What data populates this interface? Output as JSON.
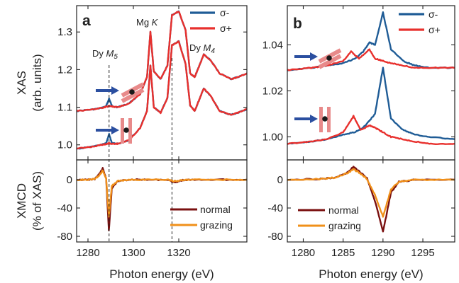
{
  "chart_data": [
    {
      "panel": "a",
      "type": "line",
      "xlabel": "Photon energy (eV)",
      "xlim": [
        1275,
        1350
      ],
      "xticks": [
        1280,
        1300,
        1320
      ],
      "top": {
        "ylabel": [
          "XAS",
          "(arb. units)"
        ],
        "ylim": [
          0.96,
          1.37
        ],
        "yticks": [
          "1.0",
          "1.1",
          "1.2",
          "1.3"
        ],
        "legend": {
          "position": "top-right",
          "entries": [
            {
              "name": "σ-",
              "color": "#1f5c96"
            },
            {
              "name": "σ+",
              "color": "#e8302d"
            }
          ]
        },
        "annotations": [
          "Dy M5",
          "Mg K",
          "Dy M4"
        ],
        "series": [
          {
            "name": "σ- (grazing)",
            "color": "#1f5c96",
            "x": [
              1275,
              1282,
              1286,
              1288,
              1289.3,
              1290.5,
              1293,
              1298,
              1303,
              1306,
              1307.5,
              1309,
              1312,
              1315,
              1317,
              1320,
              1323,
              1325,
              1327,
              1329,
              1331,
              1334,
              1338,
              1343,
              1346,
              1350
            ],
            "y": [
              1.09,
              1.094,
              1.098,
              1.103,
              1.123,
              1.104,
              1.1,
              1.11,
              1.135,
              1.18,
              1.3,
              1.195,
              1.175,
              1.21,
              1.345,
              1.355,
              1.305,
              1.19,
              1.18,
              1.21,
              1.24,
              1.225,
              1.19,
              1.175,
              1.18,
              1.19
            ]
          },
          {
            "name": "σ+ (grazing)",
            "color": "#e8302d",
            "x": [
              1275,
              1282,
              1286,
              1288,
              1289.3,
              1290.5,
              1293,
              1298,
              1303,
              1306,
              1307.5,
              1309,
              1312,
              1315,
              1317,
              1320,
              1323,
              1325,
              1327,
              1329,
              1331,
              1334,
              1338,
              1343,
              1346,
              1350
            ],
            "y": [
              1.09,
              1.094,
              1.098,
              1.101,
              1.103,
              1.102,
              1.1,
              1.11,
              1.135,
              1.18,
              1.3,
              1.195,
              1.175,
              1.21,
              1.345,
              1.355,
              1.305,
              1.19,
              1.18,
              1.21,
              1.24,
              1.225,
              1.19,
              1.175,
              1.18,
              1.19
            ]
          },
          {
            "name": "σ- (normal)",
            "color": "#1f5c96",
            "x": [
              1275,
              1282,
              1286,
              1288,
              1289.3,
              1290.5,
              1293,
              1298,
              1303,
              1306,
              1307.5,
              1309,
              1312,
              1315,
              1317,
              1320,
              1323,
              1325,
              1327,
              1329,
              1331,
              1334,
              1338,
              1343,
              1346,
              1350
            ],
            "y": [
              0.99,
              0.995,
              1.0,
              1.004,
              1.028,
              1.006,
              1.003,
              1.012,
              1.045,
              1.09,
              1.21,
              1.1,
              1.085,
              1.125,
              1.265,
              1.275,
              1.215,
              1.105,
              1.09,
              1.12,
              1.15,
              1.13,
              1.09,
              1.08,
              1.085,
              1.095
            ]
          },
          {
            "name": "σ+ (normal)",
            "color": "#e8302d",
            "x": [
              1275,
              1282,
              1286,
              1288,
              1289.3,
              1290.5,
              1293,
              1298,
              1303,
              1306,
              1307.5,
              1309,
              1312,
              1315,
              1317,
              1320,
              1323,
              1325,
              1327,
              1329,
              1331,
              1334,
              1338,
              1343,
              1346,
              1350
            ],
            "y": [
              0.99,
              0.995,
              1.0,
              1.002,
              1.004,
              1.003,
              1.003,
              1.012,
              1.045,
              1.09,
              1.21,
              1.1,
              1.085,
              1.125,
              1.265,
              1.275,
              1.215,
              1.105,
              1.09,
              1.12,
              1.15,
              1.13,
              1.09,
              1.08,
              1.085,
              1.095
            ]
          }
        ]
      },
      "bottom": {
        "ylabel": [
          "XMCD",
          "(% of XAS)"
        ],
        "ylim": [
          -88,
          28
        ],
        "yticks": [
          "0",
          "-40",
          "-80"
        ],
        "legend": {
          "position": "bottom-right",
          "entries": [
            {
              "name": "normal",
              "color": "#7a1010"
            },
            {
              "name": "grazing",
              "color": "#f0901a"
            }
          ]
        },
        "series": [
          {
            "name": "normal",
            "color": "#7a1010",
            "x": [
              1275,
              1280,
              1283,
              1285,
              1286.5,
              1288,
              1289.2,
              1290.5,
              1293,
              1298,
              1305,
              1315,
              1318,
              1321,
              1325,
              1335,
              1350
            ],
            "y": [
              0,
              0,
              1,
              8,
              16,
              2,
              -72,
              -12,
              -2,
              0,
              0,
              0,
              -4,
              -1,
              0,
              0,
              0
            ]
          },
          {
            "name": "grazing",
            "color": "#f0901a",
            "x": [
              1275,
              1280,
              1283,
              1285,
              1286.5,
              1288,
              1289.2,
              1290.5,
              1293,
              1298,
              1305,
              1315,
              1318,
              1321,
              1325,
              1335,
              1350
            ],
            "y": [
              0,
              0,
              1,
              6,
              13,
              2,
              -52,
              -9,
              -2,
              0,
              0,
              0,
              -2,
              -1,
              0,
              0,
              0
            ]
          }
        ]
      }
    },
    {
      "panel": "b",
      "type": "line",
      "xlabel": "Photon energy (eV)",
      "xlim": [
        1278,
        1299
      ],
      "xticks": [
        1280,
        1285,
        1290,
        1295
      ],
      "top": {
        "ylim": [
          0.99,
          1.057
        ],
        "yticks": [
          "1.00",
          "1.02",
          "1.04"
        ],
        "legend": {
          "position": "top-right",
          "entries": [
            {
              "name": "σ-",
              "color": "#1f5c96"
            },
            {
              "name": "σ+",
              "color": "#e8302d"
            }
          ]
        },
        "series": [
          {
            "name": "σ- (grazing)",
            "color": "#1f5c96",
            "x": [
              1278,
              1281,
              1283,
              1285,
              1286.5,
              1287.5,
              1288.3,
              1289,
              1290,
              1291,
              1292.5,
              1294,
              1296,
              1299
            ],
            "y": [
              1.029,
              1.03,
              1.031,
              1.032,
              1.034,
              1.037,
              1.041,
              1.04,
              1.054,
              1.038,
              1.033,
              1.031,
              1.03,
              1.03
            ]
          },
          {
            "name": "σ+ (grazing)",
            "color": "#e8302d",
            "x": [
              1278,
              1281,
              1283,
              1285,
              1286,
              1287,
              1288.3,
              1289,
              1290,
              1291,
              1292.5,
              1294,
              1296,
              1299
            ],
            "y": [
              1.029,
              1.03,
              1.031,
              1.033,
              1.037,
              1.034,
              1.038,
              1.034,
              1.033,
              1.032,
              1.031,
              1.03,
              1.03,
              1.03
            ]
          },
          {
            "name": "σ- (normal)",
            "color": "#1f5c96",
            "x": [
              1278,
              1281,
              1283,
              1285,
              1286.5,
              1287.5,
              1288.3,
              1289,
              1290,
              1291,
              1292.5,
              1294,
              1296,
              1299
            ],
            "y": [
              0.997,
              0.998,
              0.999,
              1.001,
              1.002,
              1.004,
              1.007,
              1.01,
              1.03,
              1.008,
              1.003,
              1.001,
              1.0,
              0.999
            ]
          },
          {
            "name": "σ+ (normal)",
            "color": "#e8302d",
            "x": [
              1278,
              1281,
              1283,
              1285,
              1286.3,
              1287.2,
              1288.3,
              1289,
              1290,
              1291,
              1292.5,
              1294,
              1296,
              1299
            ],
            "y": [
              0.997,
              0.998,
              0.999,
              1.002,
              1.009,
              1.003,
              1.005,
              1.004,
              1.002,
              1.0,
              0.999,
              0.998,
              0.997,
              0.997
            ]
          }
        ]
      },
      "bottom": {
        "ylim": [
          -88,
          28
        ],
        "yticks": [
          "0",
          "-40",
          "-80"
        ],
        "legend": {
          "position": "bottom-right",
          "entries": [
            {
              "name": "normal",
              "color": "#7a1010"
            },
            {
              "name": "grazing",
              "color": "#f0901a"
            }
          ]
        },
        "series": [
          {
            "name": "normal",
            "color": "#7a1010",
            "x": [
              1278,
              1282,
              1284,
              1285.5,
              1286.3,
              1287,
              1288,
              1289,
              1290,
              1291,
              1292,
              1294,
              1299
            ],
            "y": [
              0,
              1,
              3,
              10,
              18,
              12,
              2,
              -30,
              -74,
              -18,
              -3,
              0,
              0
            ]
          },
          {
            "name": "grazing",
            "color": "#f0901a",
            "x": [
              1278,
              1282,
              1284,
              1285.5,
              1286.3,
              1287,
              1288,
              1289,
              1290,
              1291,
              1292,
              1294,
              1299
            ],
            "y": [
              0,
              1,
              3,
              9,
              15,
              10,
              1,
              -22,
              -52,
              -14,
              -3,
              0,
              0
            ]
          }
        ]
      }
    }
  ]
}
